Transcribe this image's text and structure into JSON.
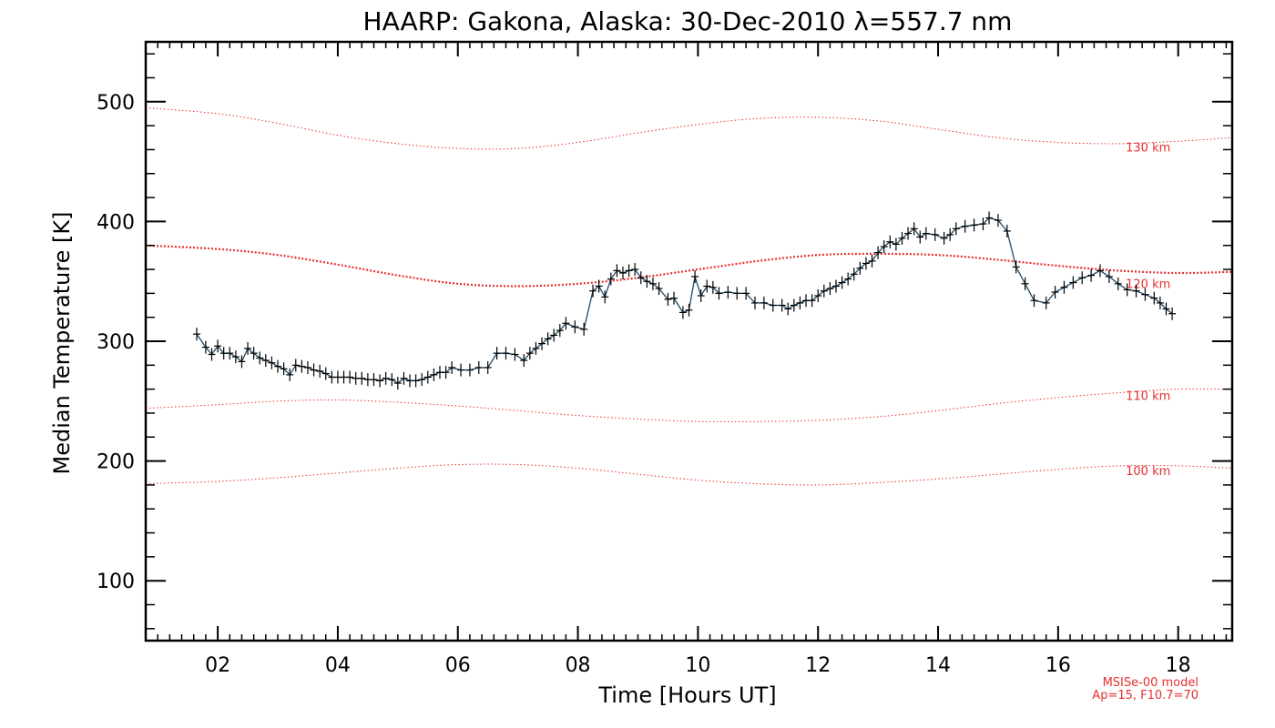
{
  "chart_data": {
    "type": "line",
    "title": "HAARP: Gakona,  Alaska: 30-Dec-2010 λ=557.7 nm",
    "xlabel": "Time [Hours UT]",
    "ylabel": "Median Temperature [K]",
    "xlim": [
      0.8,
      18.9
    ],
    "ylim": [
      50,
      550
    ],
    "x_ticks": [
      {
        "value": 2,
        "label": "02"
      },
      {
        "value": 4,
        "label": "04"
      },
      {
        "value": 6,
        "label": "06"
      },
      {
        "value": 8,
        "label": "08"
      },
      {
        "value": 10,
        "label": "10"
      },
      {
        "value": 12,
        "label": "12"
      },
      {
        "value": 14,
        "label": "14"
      },
      {
        "value": 16,
        "label": "16"
      },
      {
        "value": 18,
        "label": "18"
      }
    ],
    "y_ticks": [
      {
        "value": 100,
        "label": "100"
      },
      {
        "value": 200,
        "label": "200"
      },
      {
        "value": 300,
        "label": "300"
      },
      {
        "value": 400,
        "label": "400"
      },
      {
        "value": 500,
        "label": "500"
      }
    ],
    "grid": false,
    "colors": {
      "data_line": "#1e4a66",
      "data_marker": "#000000",
      "model": "#e83030",
      "axes": "#000000"
    },
    "series": [
      {
        "marker": "plus",
        "x": [
          1.65,
          1.8,
          1.9,
          2.0,
          2.1,
          2.2,
          2.3,
          2.4,
          2.5,
          2.6,
          2.7,
          2.8,
          2.9,
          3.0,
          3.1,
          3.2,
          3.3,
          3.4,
          3.5,
          3.6,
          3.7,
          3.8,
          3.9,
          4.0,
          4.1,
          4.2,
          4.3,
          4.4,
          4.5,
          4.6,
          4.7,
          4.8,
          4.9,
          5.0,
          5.1,
          5.2,
          5.3,
          5.4,
          5.5,
          5.6,
          5.7,
          5.8,
          5.9,
          6.05,
          6.2,
          6.35,
          6.5,
          6.65,
          6.8,
          6.95,
          7.1,
          7.2,
          7.3,
          7.4,
          7.5,
          7.6,
          7.7,
          7.8,
          7.95,
          8.1,
          8.25,
          8.35,
          8.45,
          8.55,
          8.65,
          8.75,
          8.85,
          8.95,
          9.05,
          9.15,
          9.25,
          9.35,
          9.5,
          9.6,
          9.75,
          9.85,
          9.95,
          10.05,
          10.15,
          10.25,
          10.35,
          10.5,
          10.65,
          10.8,
          10.95,
          11.1,
          11.25,
          11.4,
          11.5,
          11.6,
          11.7,
          11.8,
          11.9,
          12.0,
          12.1,
          12.2,
          12.3,
          12.4,
          12.5,
          12.6,
          12.7,
          12.8,
          12.9,
          13.0,
          13.1,
          13.2,
          13.3,
          13.4,
          13.5,
          13.6,
          13.7,
          13.8,
          13.95,
          14.1,
          14.2,
          14.3,
          14.45,
          14.6,
          14.75,
          14.85,
          15.0,
          15.15,
          15.3,
          15.45,
          15.6,
          15.8,
          15.95,
          16.1,
          16.25,
          16.4,
          16.55,
          16.7,
          16.85,
          17.0,
          17.15,
          17.3,
          17.45,
          17.6,
          17.7,
          17.8,
          17.9
        ],
        "y": [
          306,
          295,
          289,
          296,
          290,
          290,
          287,
          283,
          294,
          290,
          286,
          284,
          282,
          279,
          277,
          272,
          280,
          279,
          278,
          276,
          275,
          273,
          270,
          270,
          270,
          270,
          269,
          269,
          268,
          268,
          267,
          269,
          268,
          265,
          269,
          267,
          267,
          268,
          270,
          272,
          274,
          274,
          278,
          276,
          276,
          278,
          278,
          290,
          290,
          289,
          284,
          290,
          294,
          298,
          302,
          305,
          309,
          315,
          312,
          310,
          342,
          346,
          337,
          352,
          359,
          357,
          359,
          360,
          353,
          350,
          348,
          344,
          335,
          336,
          324,
          326,
          354,
          338,
          346,
          345,
          340,
          341,
          340,
          340,
          332,
          332,
          330,
          330,
          327,
          330,
          332,
          334,
          334,
          338,
          342,
          344,
          346,
          349,
          352,
          356,
          361,
          365,
          367,
          374,
          379,
          383,
          381,
          386,
          390,
          394,
          387,
          390,
          389,
          386,
          389,
          394,
          396,
          397,
          398,
          403,
          401,
          392,
          362,
          348,
          334,
          332,
          341,
          345,
          349,
          353,
          355,
          359,
          354,
          348,
          343,
          342,
          339,
          336,
          332,
          327,
          323
        ]
      }
    ],
    "model_curves": [
      {
        "label": "130 km",
        "x": [
          0.8,
          2.0,
          3.0,
          4.0,
          5.0,
          6.0,
          7.0,
          8.0,
          9.0,
          10.0,
          11.0,
          12.0,
          13.0,
          14.0,
          15.0,
          16.0,
          17.0,
          18.0,
          18.9
        ],
        "y": [
          495,
          490,
          482,
          472,
          465,
          461,
          461,
          466,
          474,
          481,
          486,
          487,
          484,
          477,
          470,
          466,
          465,
          467,
          470
        ]
      },
      {
        "label": "120 km",
        "x": [
          0.8,
          2.0,
          3.0,
          4.0,
          5.0,
          6.0,
          7.0,
          8.0,
          9.0,
          10.0,
          11.0,
          12.0,
          13.0,
          14.0,
          15.0,
          16.0,
          17.0,
          18.0,
          18.9
        ],
        "y": [
          380,
          377,
          372,
          364,
          355,
          348,
          346,
          348,
          353,
          360,
          367,
          372,
          373,
          372,
          368,
          363,
          359,
          357,
          358
        ]
      },
      {
        "label": "110 km",
        "x": [
          0.8,
          2.0,
          3.0,
          4.0,
          5.0,
          6.0,
          7.0,
          8.0,
          9.0,
          10.0,
          11.0,
          12.0,
          13.0,
          14.0,
          15.0,
          16.0,
          17.0,
          18.0,
          18.9
        ],
        "y": [
          244,
          247,
          250,
          251,
          249,
          246,
          242,
          238,
          235,
          233,
          233,
          234,
          237,
          242,
          248,
          253,
          257,
          260,
          260
        ]
      },
      {
        "label": "100 km",
        "x": [
          0.8,
          2.0,
          3.0,
          4.0,
          5.0,
          6.0,
          7.0,
          8.0,
          9.0,
          10.0,
          11.0,
          12.0,
          13.0,
          14.0,
          15.0,
          16.0,
          17.0,
          18.0,
          18.9
        ],
        "y": [
          181,
          183,
          186,
          190,
          194,
          197,
          197,
          194,
          189,
          184,
          181,
          180,
          182,
          185,
          189,
          193,
          196,
          196,
          194
        ]
      }
    ],
    "model_note": [
      "MSISe-00 model",
      "Ap=15, F10.7=70"
    ]
  }
}
